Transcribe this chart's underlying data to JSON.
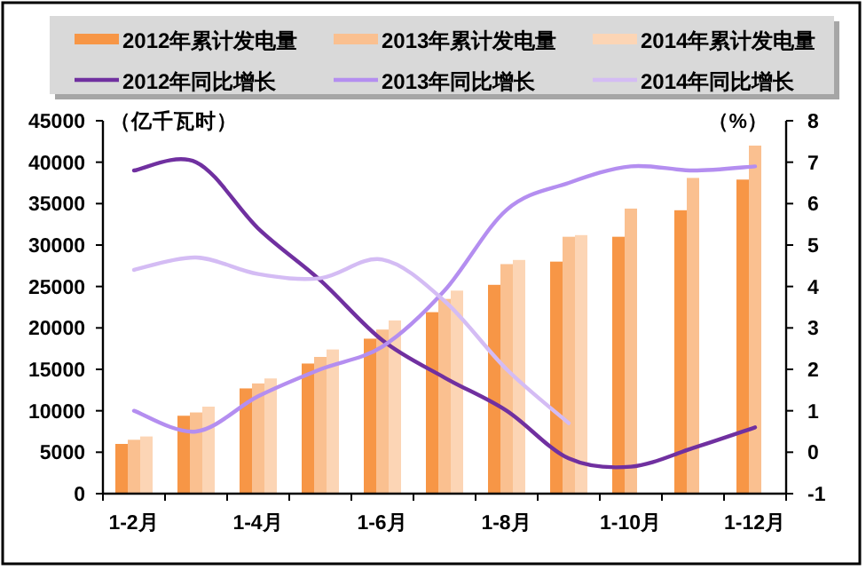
{
  "chart_data": {
    "type": "bar",
    "categories": [
      "1-2月",
      null,
      "1-4月",
      null,
      "1-6月",
      null,
      "1-8月",
      null,
      "1-10月",
      null,
      "1-12月"
    ],
    "ylabel": "（亿千瓦时）",
    "y2label": "（%）",
    "ylim": [
      0,
      45000
    ],
    "yticks": [
      0,
      5000,
      10000,
      15000,
      20000,
      25000,
      30000,
      35000,
      40000,
      45000
    ],
    "y2lim": [
      -1,
      8
    ],
    "y2ticks": [
      -1,
      0,
      1,
      2,
      3,
      4,
      5,
      6,
      7,
      8
    ],
    "legend": "top",
    "grid": false,
    "series": [
      {
        "name": "2012年累计发电量",
        "color": "#f79646",
        "values": [
          6000,
          9400,
          12700,
          15700,
          18700,
          21900,
          25200,
          28000,
          31000,
          34200,
          37900
        ]
      },
      {
        "name": "2013年累计发电量",
        "color": "#fac090",
        "values": [
          6500,
          9800,
          13300,
          16500,
          19800,
          23500,
          27700,
          31000,
          34400,
          38100,
          42000
        ]
      },
      {
        "name": "2014年累计发电量",
        "color": "#fcd5b5",
        "values": [
          6900,
          10500,
          13900,
          17400,
          20900,
          24500,
          28200,
          31200,
          null,
          null,
          null
        ]
      },
      {
        "name": "2012年同比增长",
        "type": "line",
        "axis": "y2",
        "color": "#7030a0",
        "values": [
          6.8,
          7.0,
          5.4,
          4.15,
          2.7,
          1.8,
          1.0,
          -0.15,
          -0.35,
          0.1,
          0.6
        ]
      },
      {
        "name": "2013年同比增长",
        "type": "line",
        "axis": "y2",
        "color": "#b48ef0",
        "values": [
          1.0,
          0.5,
          1.35,
          2.0,
          2.55,
          3.9,
          5.85,
          6.5,
          6.9,
          6.8,
          6.9
        ]
      },
      {
        "name": "2014年同比增长",
        "type": "line",
        "axis": "y2",
        "color": "#d4bcf4",
        "values": [
          4.4,
          4.7,
          4.3,
          4.2,
          4.65,
          3.65,
          2.0,
          0.7,
          null,
          null,
          null
        ]
      }
    ]
  }
}
